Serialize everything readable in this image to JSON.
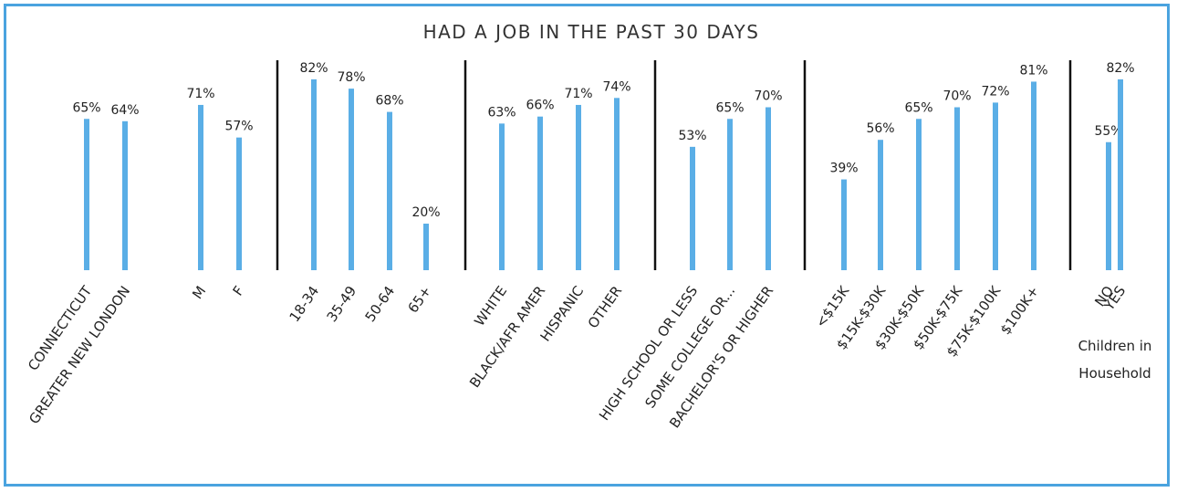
{
  "chart_data": {
    "type": "bar",
    "title": "HAD A JOB IN THE PAST 30 DAYS",
    "unit": "%",
    "ylim": [
      0,
      100
    ],
    "grid": false,
    "bar_color": "#5aaee6",
    "groups": [
      {
        "categories": [
          "CONNECTICUT",
          "GREATER NEW LONDON"
        ],
        "values": [
          65,
          64
        ]
      },
      {
        "categories": [
          "M",
          "F"
        ],
        "values": [
          71,
          57
        ]
      },
      {
        "categories": [
          "18-34",
          "35-49",
          "50-64",
          "65+"
        ],
        "values": [
          82,
          78,
          68,
          20
        ]
      },
      {
        "categories": [
          "WHITE",
          "BLACK/AFR AMER",
          "HISPANIC",
          "OTHER"
        ],
        "values": [
          63,
          66,
          71,
          74
        ]
      },
      {
        "categories": [
          "HIGH SCHOOL OR LESS",
          "SOME COLLEGE OR...",
          "BACHELOR'S OR HIGHER"
        ],
        "values": [
          53,
          65,
          70
        ]
      },
      {
        "categories": [
          "<$15K",
          "$15K-$30K",
          "$30K-$50K",
          "$50K-$75K",
          "$75K-$100K",
          "$100K+"
        ],
        "values": [
          39,
          56,
          65,
          70,
          72,
          81
        ]
      },
      {
        "categories": [
          "NO",
          "YES"
        ],
        "values": [
          55,
          82
        ],
        "note": "Children in Household"
      }
    ]
  }
}
